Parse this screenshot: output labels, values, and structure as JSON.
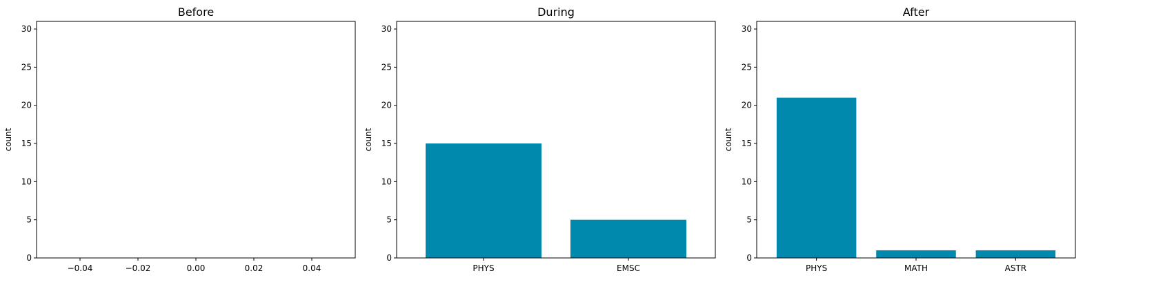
{
  "chart_data": [
    {
      "type": "bar",
      "title": "Before",
      "ylabel": "count",
      "xlabel": "",
      "categories": [],
      "values": [],
      "ylim": [
        0,
        31
      ],
      "yticks": [
        0,
        5,
        10,
        15,
        20,
        25,
        30
      ],
      "xlim": [
        -0.055,
        0.055
      ],
      "xticks": [
        "−0.04",
        "−0.02",
        "0.00",
        "0.02",
        "0.04"
      ],
      "xtick_values": [
        -0.04,
        -0.02,
        0.0,
        0.02,
        0.04
      ],
      "grid": false,
      "bar_color": "#0088ad"
    },
    {
      "type": "bar",
      "title": "During",
      "ylabel": "count",
      "xlabel": "",
      "categories": [
        "PHYS",
        "EMSC"
      ],
      "values": [
        15,
        5
      ],
      "ylim": [
        0,
        31
      ],
      "yticks": [
        0,
        5,
        10,
        15,
        20,
        25,
        30
      ],
      "grid": false,
      "bar_color": "#0088ad"
    },
    {
      "type": "bar",
      "title": "After",
      "ylabel": "count",
      "xlabel": "",
      "categories": [
        "PHYS",
        "MATH",
        "ASTR"
      ],
      "values": [
        21,
        1,
        1
      ],
      "ylim": [
        0,
        31
      ],
      "yticks": [
        0,
        5,
        10,
        15,
        20,
        25,
        30
      ],
      "grid": false,
      "bar_color": "#0088ad"
    }
  ]
}
